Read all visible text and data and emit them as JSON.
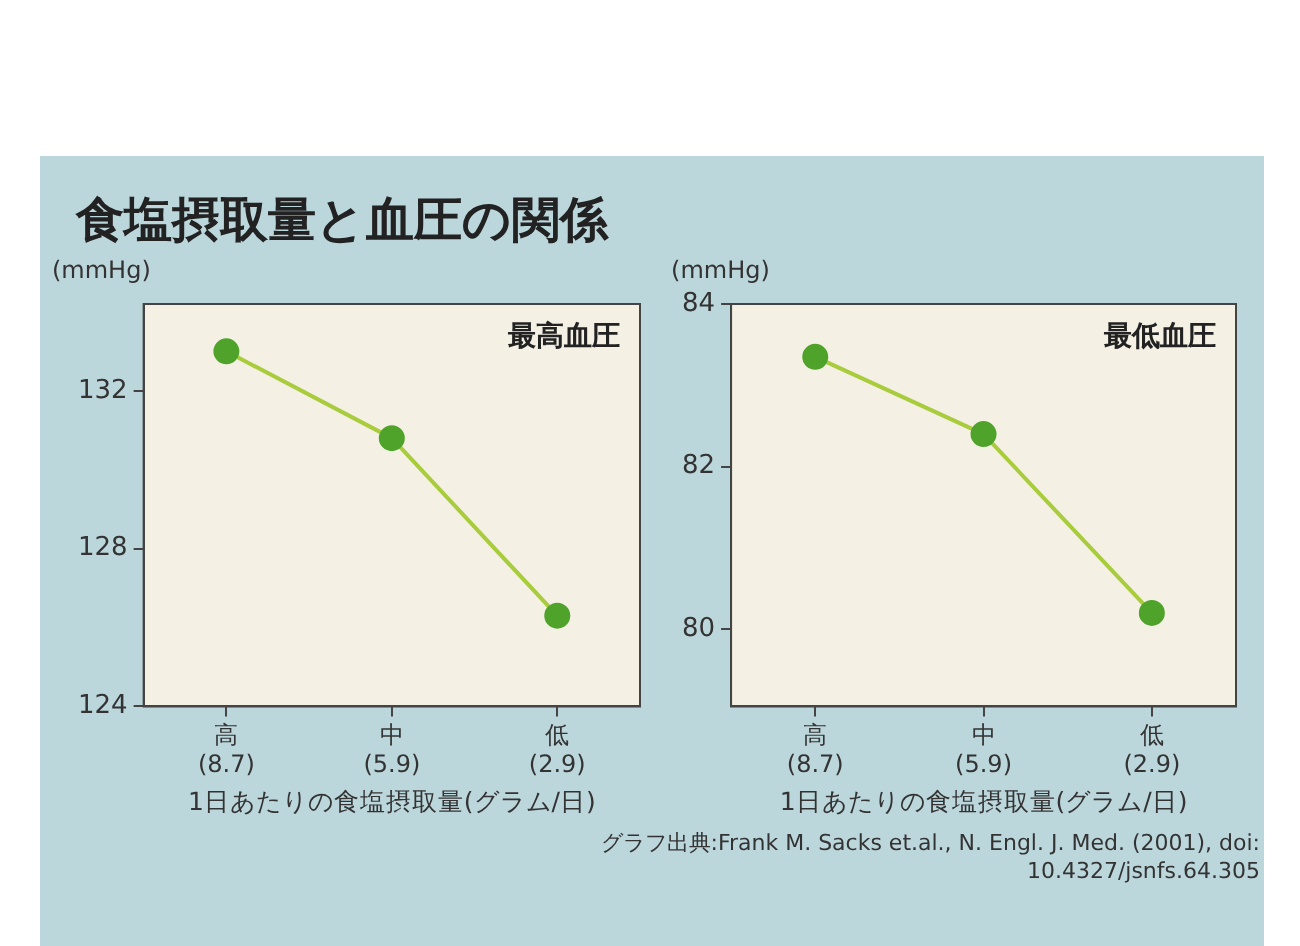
{
  "chart_data": [
    {
      "type": "line",
      "title": "食塩摂取量と血圧の関係",
      "ylabel": "(mmHg)",
      "xlabel": "1日あたりの食塩摂取量(グラム/日)",
      "categories": [
        "高\n(8.7)",
        "中\n(5.9)",
        "低\n(2.9)"
      ],
      "series": [
        {
          "color": "#4fa32b",
          "values": [
            133.0,
            130.8,
            126.3
          ]
        }
      ],
      "ylim": [
        124,
        134.2
      ],
      "yticks": [
        124,
        128,
        132
      ],
      "marker": "circle",
      "line_style": "solid",
      "grid": false,
      "legend": false,
      "annotations": [
        "最高血圧"
      ]
    },
    {
      "type": "line",
      "ylabel": "(mmHg)",
      "xlabel": "1日あたりの食塩摂取量(グラム/日)",
      "categories": [
        "高\n(8.7)",
        "中\n(5.9)",
        "低\n(2.9)"
      ],
      "series": [
        {
          "color": "#4fa32b",
          "values": [
            83.35,
            82.4,
            80.2
          ]
        }
      ],
      "ylim": [
        79.05,
        84
      ],
      "yticks": [
        80,
        82,
        84
      ],
      "marker": "circle",
      "line_style": "solid",
      "grid": false,
      "legend": false,
      "annotations": [
        "最低血圧",
        "グラフ出典:Frank M. Sacks et.al., N. Engl. J. Med. (2001), doi: 10.4327/jsnfs.64.305"
      ]
    }
  ]
}
